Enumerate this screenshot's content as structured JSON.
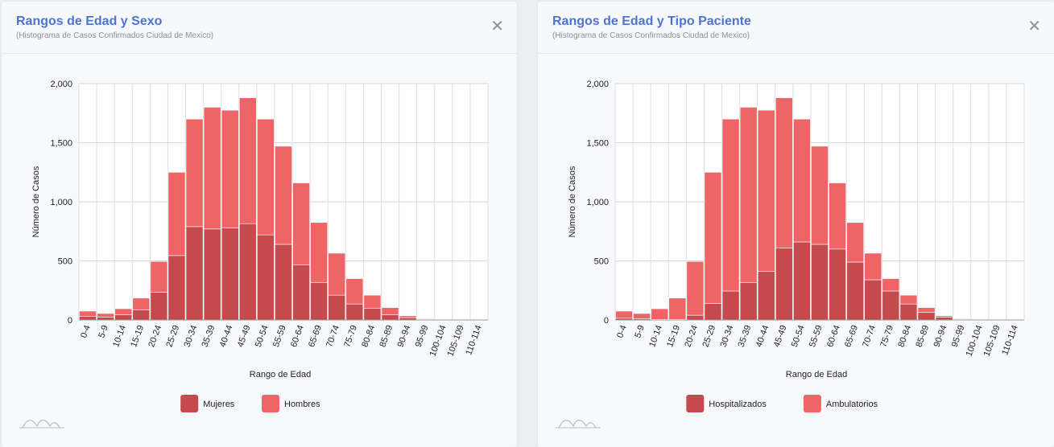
{
  "panels": [
    {
      "title": "Rangos de Edad y Sexo",
      "subtitle": "(Histograma de Casos Confirmados Ciudad de Mexico)",
      "close_label": "✕",
      "chart_data": {
        "type": "bar",
        "stacked": true,
        "categories": [
          "0-4",
          "5-9",
          "10-14",
          "15-19",
          "20-24",
          "25-29",
          "30-34",
          "35-39",
          "40-44",
          "45-49",
          "50-54",
          "55-59",
          "60-64",
          "65-69",
          "70-74",
          "75-79",
          "80-84",
          "85-89",
          "90-94",
          "95-99",
          "100-104",
          "105-109",
          "110-114"
        ],
        "series": [
          {
            "name": "Mujeres",
            "color": "#c44a4e",
            "values": [
              30,
              25,
              45,
              85,
              235,
              545,
              790,
              770,
              780,
              815,
              720,
              640,
              465,
              315,
              210,
              135,
              100,
              45,
              20,
              5,
              0,
              0,
              0
            ]
          },
          {
            "name": "Hombres",
            "color": "#ef6466",
            "values": [
              45,
              30,
              50,
              100,
              260,
              705,
              910,
              1030,
              995,
              1065,
              980,
              830,
              695,
              510,
              355,
              215,
              110,
              60,
              15,
              5,
              0,
              0,
              0
            ]
          }
        ],
        "ylim": [
          0,
          2000
        ],
        "yticks": [
          "0",
          "500",
          "1,000",
          "1,500",
          "2,000"
        ],
        "xlabel": "Rango de Edad",
        "ylabel": "Número de Casos",
        "grid": true,
        "legend": "bottom"
      }
    },
    {
      "title": "Rangos de Edad y Tipo Paciente",
      "subtitle": "(Histograma de Casos Confirmados Ciudad de Mexico)",
      "close_label": "✕",
      "chart_data": {
        "type": "bar",
        "stacked": true,
        "categories": [
          "0-4",
          "5-9",
          "10-14",
          "15-19",
          "20-24",
          "25-29",
          "30-34",
          "35-39",
          "40-44",
          "45-49",
          "50-54",
          "55-59",
          "60-64",
          "65-69",
          "70-74",
          "75-79",
          "80-84",
          "85-89",
          "90-94",
          "95-99",
          "100-104",
          "105-109",
          "110-114"
        ],
        "series": [
          {
            "name": "Hospitalizados",
            "color": "#c44a4e",
            "values": [
              15,
              10,
              5,
              5,
              40,
              140,
              245,
              315,
              410,
              610,
              660,
              640,
              600,
              490,
              340,
              245,
              135,
              65,
              25,
              5,
              0,
              0,
              0
            ]
          },
          {
            "name": "Ambulatorios",
            "color": "#ef6466",
            "values": [
              60,
              45,
              90,
              180,
              455,
              1110,
              1455,
              1485,
              1365,
              1270,
              1040,
              830,
              560,
              335,
              225,
              105,
              75,
              40,
              10,
              5,
              0,
              0,
              0
            ]
          }
        ],
        "ylim": [
          0,
          2000
        ],
        "yticks": [
          "0",
          "500",
          "1,000",
          "1,500",
          "2,000"
        ],
        "xlabel": "Rango de Edad",
        "ylabel": "Número de Casos",
        "grid": true,
        "legend": "bottom"
      }
    }
  ]
}
